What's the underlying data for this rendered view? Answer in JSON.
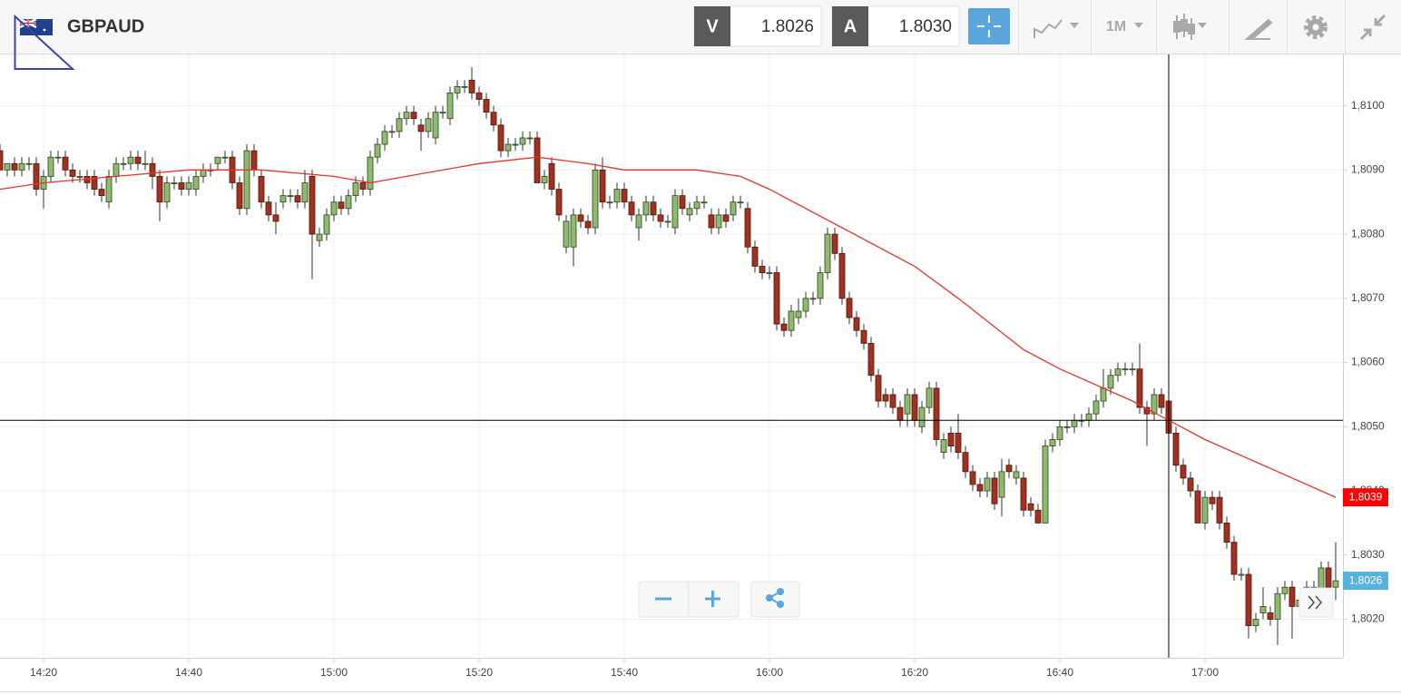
{
  "header": {
    "symbol": "GBPAUD",
    "bid_label": "V",
    "bid": "1.8026",
    "ask_label": "A",
    "ask": "1.8030",
    "timeframe": "1M"
  },
  "chart_data": {
    "type": "candlestick",
    "up_color": "#8fbb6e",
    "down_color": "#a3311d",
    "xlim": [
      "14:14",
      "17:19"
    ],
    "xticks": [
      "14:20",
      "14:40",
      "15:00",
      "15:20",
      "15:40",
      "16:00",
      "16:20",
      "16:40",
      "17:00"
    ],
    "ylim": [
      1.8014,
      1.8108
    ],
    "yticks": [
      {
        "value": 1.802,
        "label": "1,8020"
      },
      {
        "value": 1.803,
        "label": "1,8030"
      },
      {
        "value": 1.804,
        "label": "1,8040"
      },
      {
        "value": 1.805,
        "label": "1,8050"
      },
      {
        "value": 1.806,
        "label": "1,8060"
      },
      {
        "value": 1.807,
        "label": "1,8070"
      },
      {
        "value": 1.808,
        "label": "1,8080"
      },
      {
        "value": 1.809,
        "label": "1,8090"
      },
      {
        "value": 1.81,
        "label": "1,8100"
      }
    ],
    "grid": true,
    "x": [
      "14:14",
      "14:15",
      "14:16",
      "14:17",
      "14:18",
      "14:19",
      "14:20",
      "14:21",
      "14:22",
      "14:23",
      "14:24",
      "14:25",
      "14:26",
      "14:27",
      "14:28",
      "14:29",
      "14:30",
      "14:31",
      "14:32",
      "14:33",
      "14:34",
      "14:35",
      "14:36",
      "14:37",
      "14:38",
      "14:39",
      "14:40",
      "14:41",
      "14:42",
      "14:43",
      "14:44",
      "14:45",
      "14:46",
      "14:47",
      "14:48",
      "14:49",
      "14:50",
      "14:51",
      "14:52",
      "14:53",
      "14:54",
      "14:55",
      "14:56",
      "14:57",
      "14:58",
      "14:59",
      "15:00",
      "15:01",
      "15:02",
      "15:03",
      "15:04",
      "15:05",
      "15:06",
      "15:07",
      "15:08",
      "15:09",
      "15:10",
      "15:11",
      "15:12",
      "15:13",
      "15:14",
      "15:15",
      "15:16",
      "15:17",
      "15:18",
      "15:19",
      "15:20",
      "15:21",
      "15:22",
      "15:23",
      "15:24",
      "15:25",
      "15:26",
      "15:27",
      "15:28",
      "15:29",
      "15:30",
      "15:31",
      "15:32",
      "15:33",
      "15:34",
      "15:35",
      "15:36",
      "15:37",
      "15:38",
      "15:39",
      "15:40",
      "15:41",
      "15:42",
      "15:43",
      "15:44",
      "15:45",
      "15:46",
      "15:47",
      "15:48",
      "15:49",
      "15:50",
      "15:51",
      "15:52",
      "15:53",
      "15:54",
      "15:55",
      "15:56",
      "15:57",
      "15:58",
      "15:59",
      "16:00",
      "16:01",
      "16:02",
      "16:03",
      "16:04",
      "16:05",
      "16:06",
      "16:07",
      "16:08",
      "16:09",
      "16:10",
      "16:11",
      "16:12",
      "16:13",
      "16:14",
      "16:15",
      "16:16",
      "16:17",
      "16:18",
      "16:19",
      "16:20",
      "16:21",
      "16:22",
      "16:23",
      "16:24",
      "16:25",
      "16:26",
      "16:27",
      "16:28",
      "16:29",
      "16:30",
      "16:31",
      "16:32",
      "16:33",
      "16:34",
      "16:35",
      "16:36",
      "16:37",
      "16:38",
      "16:39",
      "16:40",
      "16:41",
      "16:42",
      "16:43",
      "16:44",
      "16:45",
      "16:46",
      "16:47",
      "16:48",
      "16:49",
      "16:50",
      "16:51",
      "16:52",
      "16:53",
      "16:54",
      "16:55",
      "16:56",
      "16:57",
      "16:58",
      "16:59",
      "17:00",
      "17:01",
      "17:02",
      "17:03",
      "17:04",
      "17:05",
      "17:06",
      "17:07",
      "17:08",
      "17:09",
      "17:10",
      "17:11",
      "17:12",
      "17:13",
      "17:14",
      "17:15",
      "17:16",
      "17:17",
      "17:18"
    ],
    "values": [
      [
        1.8093,
        1.8094,
        1.809,
        1.809
      ],
      [
        1.809,
        1.8091,
        1.8089,
        1.8091
      ],
      [
        1.8091,
        1.8092,
        1.8089,
        1.809
      ],
      [
        1.809,
        1.8092,
        1.8089,
        1.8091
      ],
      [
        1.8091,
        1.8092,
        1.809,
        1.8091
      ],
      [
        1.8091,
        1.8092,
        1.8086,
        1.8087
      ],
      [
        1.8087,
        1.809,
        1.8084,
        1.8089
      ],
      [
        1.8089,
        1.8093,
        1.8088,
        1.8092
      ],
      [
        1.8092,
        1.8093,
        1.8091,
        1.8092
      ],
      [
        1.8092,
        1.8093,
        1.8089,
        1.809
      ],
      [
        1.809,
        1.8091,
        1.8088,
        1.8089
      ],
      [
        1.8089,
        1.809,
        1.8088,
        1.8089
      ],
      [
        1.8089,
        1.809,
        1.8087,
        1.8088
      ],
      [
        1.8089,
        1.809,
        1.8086,
        1.8087
      ],
      [
        1.8087,
        1.8088,
        1.8085,
        1.8086
      ],
      [
        1.8085,
        1.809,
        1.8084,
        1.8089
      ],
      [
        1.8089,
        1.8092,
        1.8088,
        1.8091
      ],
      [
        1.8091,
        1.8092,
        1.809,
        1.8091
      ],
      [
        1.8091,
        1.8093,
        1.809,
        1.8092
      ],
      [
        1.8092,
        1.8093,
        1.809,
        1.8091
      ],
      [
        1.8091,
        1.8093,
        1.809,
        1.8091
      ],
      [
        1.8091,
        1.8092,
        1.8087,
        1.8089
      ],
      [
        1.8089,
        1.809,
        1.8082,
        1.8085
      ],
      [
        1.8085,
        1.8089,
        1.8084,
        1.8088
      ],
      [
        1.8088,
        1.8089,
        1.8087,
        1.8088
      ],
      [
        1.8088,
        1.8089,
        1.8086,
        1.8087
      ],
      [
        1.8087,
        1.8089,
        1.8086,
        1.8088
      ],
      [
        1.8087,
        1.809,
        1.8086,
        1.8089
      ],
      [
        1.8089,
        1.8091,
        1.8088,
        1.809
      ],
      [
        1.809,
        1.8091,
        1.8089,
        1.809
      ],
      [
        1.8091,
        1.8092,
        1.809,
        1.8092
      ],
      [
        1.8092,
        1.8093,
        1.8091,
        1.8092
      ],
      [
        1.8092,
        1.8093,
        1.8087,
        1.8088
      ],
      [
        1.8088,
        1.8089,
        1.8083,
        1.8084
      ],
      [
        1.8084,
        1.8094,
        1.8083,
        1.8093
      ],
      [
        1.8093,
        1.8094,
        1.8089,
        1.809
      ],
      [
        1.8089,
        1.809,
        1.8084,
        1.8085
      ],
      [
        1.8085,
        1.8086,
        1.8082,
        1.8083
      ],
      [
        1.8083,
        1.8085,
        1.808,
        1.8082
      ],
      [
        1.8085,
        1.8087,
        1.8084,
        1.8086
      ],
      [
        1.8086,
        1.8087,
        1.8085,
        1.8086
      ],
      [
        1.8086,
        1.8087,
        1.8084,
        1.8085
      ],
      [
        1.8085,
        1.809,
        1.8084,
        1.8088
      ],
      [
        1.8089,
        1.809,
        1.8073,
        1.808
      ],
      [
        1.8079,
        1.8081,
        1.8078,
        1.808
      ],
      [
        1.808,
        1.8084,
        1.8079,
        1.8083
      ],
      [
        1.8083,
        1.8086,
        1.8082,
        1.8085
      ],
      [
        1.8085,
        1.8086,
        1.8083,
        1.8084
      ],
      [
        1.8084,
        1.8087,
        1.8083,
        1.8086
      ],
      [
        1.8086,
        1.8089,
        1.8085,
        1.8088
      ],
      [
        1.8088,
        1.8089,
        1.8086,
        1.8087
      ],
      [
        1.8087,
        1.8093,
        1.8086,
        1.8092
      ],
      [
        1.8092,
        1.8095,
        1.8091,
        1.8094
      ],
      [
        1.8094,
        1.8097,
        1.8093,
        1.8096
      ],
      [
        1.8096,
        1.8097,
        1.8095,
        1.8096
      ],
      [
        1.8096,
        1.8099,
        1.8095,
        1.8098
      ],
      [
        1.8098,
        1.81,
        1.8097,
        1.8099
      ],
      [
        1.8099,
        1.81,
        1.8097,
        1.8098
      ],
      [
        1.8097,
        1.8098,
        1.8093,
        1.8096
      ],
      [
        1.8096,
        1.8099,
        1.8095,
        1.8098
      ],
      [
        1.8095,
        1.81,
        1.8094,
        1.8099
      ],
      [
        1.8099,
        1.81,
        1.8098,
        1.8099
      ],
      [
        1.8098,
        1.8103,
        1.8097,
        1.8102
      ],
      [
        1.8102,
        1.8104,
        1.8101,
        1.8103
      ],
      [
        1.8103,
        1.8104,
        1.8102,
        1.8103
      ],
      [
        1.8104,
        1.8106,
        1.8101,
        1.8102
      ],
      [
        1.8102,
        1.8103,
        1.81,
        1.8101
      ],
      [
        1.8101,
        1.8102,
        1.8098,
        1.8099
      ],
      [
        1.8099,
        1.81,
        1.8096,
        1.8097
      ],
      [
        1.8097,
        1.8098,
        1.8092,
        1.8093
      ],
      [
        1.8093,
        1.8095,
        1.8092,
        1.8094
      ],
      [
        1.8094,
        1.8095,
        1.8093,
        1.8094
      ],
      [
        1.8094,
        1.8096,
        1.8093,
        1.8095
      ],
      [
        1.8095,
        1.8096,
        1.8094,
        1.8095
      ],
      [
        1.8095,
        1.8096,
        1.8088,
        1.8088
      ],
      [
        1.8088,
        1.809,
        1.8087,
        1.8089
      ],
      [
        1.8091,
        1.8092,
        1.8086,
        1.8087
      ],
      [
        1.8087,
        1.8088,
        1.8082,
        1.8083
      ],
      [
        1.8078,
        1.8083,
        1.8077,
        1.8082
      ],
      [
        1.8078,
        1.8084,
        1.8075,
        1.8083
      ],
      [
        1.8083,
        1.8084,
        1.8081,
        1.8082
      ],
      [
        1.8082,
        1.8083,
        1.808,
        1.8081
      ],
      [
        1.8081,
        1.8091,
        1.808,
        1.809
      ],
      [
        1.809,
        1.8092,
        1.8084,
        1.8085
      ],
      [
        1.8085,
        1.8086,
        1.8084,
        1.8085
      ],
      [
        1.8085,
        1.8088,
        1.8084,
        1.8087
      ],
      [
        1.8087,
        1.8088,
        1.8084,
        1.8085
      ],
      [
        1.8085,
        1.8086,
        1.8082,
        1.8083
      ],
      [
        1.8081,
        1.8084,
        1.8079,
        1.8083
      ],
      [
        1.8083,
        1.8086,
        1.8082,
        1.8085
      ],
      [
        1.8085,
        1.8086,
        1.8082,
        1.8083
      ],
      [
        1.8083,
        1.8084,
        1.8081,
        1.8082
      ],
      [
        1.8082,
        1.8083,
        1.8081,
        1.8082
      ],
      [
        1.8081,
        1.8087,
        1.808,
        1.8086
      ],
      [
        1.8086,
        1.8087,
        1.8083,
        1.8084
      ],
      [
        1.8083,
        1.8085,
        1.8082,
        1.8084
      ],
      [
        1.8084,
        1.8086,
        1.8083,
        1.8085
      ],
      [
        1.8085,
        1.8086,
        1.8084,
        1.8085
      ],
      [
        1.8083,
        1.8084,
        1.808,
        1.8081
      ],
      [
        1.8081,
        1.8084,
        1.808,
        1.8083
      ],
      [
        1.8083,
        1.8084,
        1.8081,
        1.8082
      ],
      [
        1.8083,
        1.8086,
        1.8082,
        1.8085
      ],
      [
        1.8085,
        1.8086,
        1.8084,
        1.8085
      ],
      [
        1.8084,
        1.8085,
        1.8077,
        1.8078
      ],
      [
        1.8078,
        1.8079,
        1.8074,
        1.8075
      ],
      [
        1.8075,
        1.8076,
        1.8073,
        1.8074
      ],
      [
        1.8074,
        1.8075,
        1.8073,
        1.8074
      ],
      [
        1.8074,
        1.8075,
        1.8065,
        1.8066
      ],
      [
        1.8066,
        1.8067,
        1.8064,
        1.8065
      ],
      [
        1.8065,
        1.8069,
        1.8064,
        1.8068
      ],
      [
        1.8067,
        1.807,
        1.8066,
        1.8068
      ],
      [
        1.8068,
        1.8071,
        1.8067,
        1.807
      ],
      [
        1.807,
        1.8071,
        1.8069,
        1.807
      ],
      [
        1.807,
        1.8075,
        1.8069,
        1.8074
      ],
      [
        1.8074,
        1.8081,
        1.8073,
        1.808
      ],
      [
        1.808,
        1.8081,
        1.8076,
        1.8077
      ],
      [
        1.8077,
        1.8078,
        1.8069,
        1.807
      ],
      [
        1.807,
        1.8071,
        1.8066,
        1.8067
      ],
      [
        1.8067,
        1.8068,
        1.8064,
        1.8065
      ],
      [
        1.8065,
        1.8066,
        1.8062,
        1.8063
      ],
      [
        1.8063,
        1.8064,
        1.8057,
        1.8058
      ],
      [
        1.8058,
        1.8059,
        1.8053,
        1.8054
      ],
      [
        1.8055,
        1.8056,
        1.8053,
        1.8054
      ],
      [
        1.8055,
        1.8056,
        1.8052,
        1.8053
      ],
      [
        1.8053,
        1.8054,
        1.805,
        1.8051
      ],
      [
        1.8052,
        1.8056,
        1.805,
        1.8055
      ],
      [
        1.8055,
        1.8056,
        1.805,
        1.8051
      ],
      [
        1.805,
        1.8054,
        1.8049,
        1.8053
      ],
      [
        1.8053,
        1.8057,
        1.8052,
        1.8056
      ],
      [
        1.8056,
        1.8057,
        1.8047,
        1.8048
      ],
      [
        1.8046,
        1.8049,
        1.8045,
        1.8048
      ],
      [
        1.8049,
        1.805,
        1.8046,
        1.8047
      ],
      [
        1.8049,
        1.8052,
        1.8045,
        1.8046
      ],
      [
        1.8046,
        1.8047,
        1.8042,
        1.8043
      ],
      [
        1.8043,
        1.8044,
        1.804,
        1.8041
      ],
      [
        1.8041,
        1.8042,
        1.8039,
        1.804
      ],
      [
        1.804,
        1.8043,
        1.8039,
        1.8042
      ],
      [
        1.8042,
        1.8043,
        1.8037,
        1.8038
      ],
      [
        1.8039,
        1.8045,
        1.8036,
        1.8043
      ],
      [
        1.8044,
        1.8045,
        1.8042,
        1.8043
      ],
      [
        1.8042,
        1.8044,
        1.8041,
        1.8043
      ],
      [
        1.8042,
        1.8043,
        1.8036,
        1.8037
      ],
      [
        1.8038,
        1.8039,
        1.8036,
        1.8037
      ],
      [
        1.8037,
        1.8038,
        1.8035,
        1.8035
      ],
      [
        1.8035,
        1.8048,
        1.8035,
        1.8047
      ],
      [
        1.8047,
        1.8049,
        1.8046,
        1.8048
      ],
      [
        1.8048,
        1.8051,
        1.8047,
        1.805
      ],
      [
        1.805,
        1.8051,
        1.8049,
        1.805
      ],
      [
        1.805,
        1.8052,
        1.8049,
        1.8051
      ],
      [
        1.8051,
        1.8052,
        1.805,
        1.8051
      ],
      [
        1.8051,
        1.8053,
        1.805,
        1.8052
      ],
      [
        1.8052,
        1.8055,
        1.8051,
        1.8054
      ],
      [
        1.8054,
        1.8059,
        1.8053,
        1.8056
      ],
      [
        1.8056,
        1.8059,
        1.8055,
        1.8058
      ],
      [
        1.8058,
        1.806,
        1.8057,
        1.8059
      ],
      [
        1.8059,
        1.806,
        1.8058,
        1.8059
      ],
      [
        1.8059,
        1.806,
        1.8058,
        1.8059
      ],
      [
        1.8059,
        1.8063,
        1.8052,
        1.8053
      ],
      [
        1.8053,
        1.8054,
        1.8047,
        1.8052
      ],
      [
        1.8052,
        1.8056,
        1.8051,
        1.8055
      ],
      [
        1.8055,
        1.8056,
        1.8052,
        1.8053
      ],
      [
        1.8054,
        1.8058,
        1.8048,
        1.8049
      ],
      [
        1.8049,
        1.805,
        1.8043,
        1.8044
      ],
      [
        1.8044,
        1.8045,
        1.8041,
        1.8042
      ],
      [
        1.8042,
        1.8043,
        1.8039,
        1.804
      ],
      [
        1.804,
        1.8041,
        1.8035,
        1.8035
      ],
      [
        1.8035,
        1.804,
        1.8034,
        1.8039
      ],
      [
        1.8039,
        1.804,
        1.8037,
        1.8038
      ],
      [
        1.8039,
        1.804,
        1.8034,
        1.8035
      ],
      [
        1.8035,
        1.8036,
        1.8031,
        1.8032
      ],
      [
        1.8032,
        1.8033,
        1.8026,
        1.8027
      ],
      [
        1.8027,
        1.8028,
        1.8026,
        1.8027
      ],
      [
        1.8027,
        1.8028,
        1.8017,
        1.8019
      ],
      [
        1.8019,
        1.8021,
        1.8018,
        1.802
      ],
      [
        1.8021,
        1.8025,
        1.802,
        1.8022
      ],
      [
        1.8021,
        1.8022,
        1.8019,
        1.802
      ],
      [
        1.802,
        1.8025,
        1.8016,
        1.8024
      ],
      [
        1.8024,
        1.8026,
        1.8023,
        1.8025
      ],
      [
        1.8025,
        1.8026,
        1.8017,
        1.8022
      ],
      [
        1.8022,
        1.8024,
        1.8021,
        1.8023
      ],
      [
        1.8024,
        1.8026,
        1.8023,
        1.8025
      ],
      [
        1.8024,
        1.8026,
        1.8023,
        1.8025
      ],
      [
        1.8024,
        1.8029,
        1.8023,
        1.8028
      ],
      [
        1.8028,
        1.8029,
        1.8024,
        1.8025
      ],
      [
        1.8025,
        1.8032,
        1.8023,
        1.8026
      ]
    ],
    "ma": {
      "color": "#e8342c",
      "x": [
        "14:14",
        "14:20",
        "14:30",
        "14:40",
        "14:50",
        "15:00",
        "15:05",
        "15:10",
        "15:20",
        "15:28",
        "15:35",
        "15:40",
        "15:50",
        "15:56",
        "16:00",
        "16:10",
        "16:20",
        "16:26",
        "16:35",
        "16:40",
        "16:50",
        "17:00",
        "17:10",
        "17:18"
      ],
      "values": [
        1.8087,
        1.8088,
        1.8089,
        1.809,
        1.809,
        1.8089,
        1.8088,
        1.8089,
        1.8091,
        1.8092,
        1.8091,
        1.809,
        1.809,
        1.8089,
        1.8087,
        1.8081,
        1.8075,
        1.807,
        1.8062,
        1.8059,
        1.8054,
        1.8048,
        1.8043,
        1.8039
      ]
    },
    "crosshair": {
      "x": "16:55",
      "y": 1.8051
    },
    "price_labels": [
      {
        "value": 1.8039,
        "label": "1,8039",
        "color": "#ff0000"
      },
      {
        "value": 1.8026,
        "label": "1,8026",
        "color": "#58b2de"
      }
    ]
  }
}
